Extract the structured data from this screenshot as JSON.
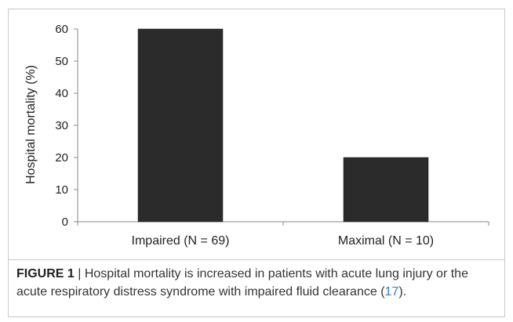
{
  "chart_data": {
    "type": "bar",
    "title": "",
    "xlabel": "",
    "ylabel": "Hospital mortality (%)",
    "categories": [
      "Impaired (N = 69)",
      "Maximal (N = 10)"
    ],
    "values": [
      60,
      20
    ],
    "ylim": [
      0,
      60
    ],
    "yticks": [
      0,
      10,
      20,
      30,
      40,
      50,
      60
    ],
    "bar_color": "#2b2b2b",
    "grid": false,
    "legend": "none"
  },
  "caption": {
    "label": "FIGURE 1",
    "separator": " | ",
    "text_before_ref": "Hospital mortality is increased in patients with acute lung injury or the acute respiratory distress syndrome with impaired fluid clearance (",
    "ref": "17",
    "text_after_ref": ")."
  }
}
